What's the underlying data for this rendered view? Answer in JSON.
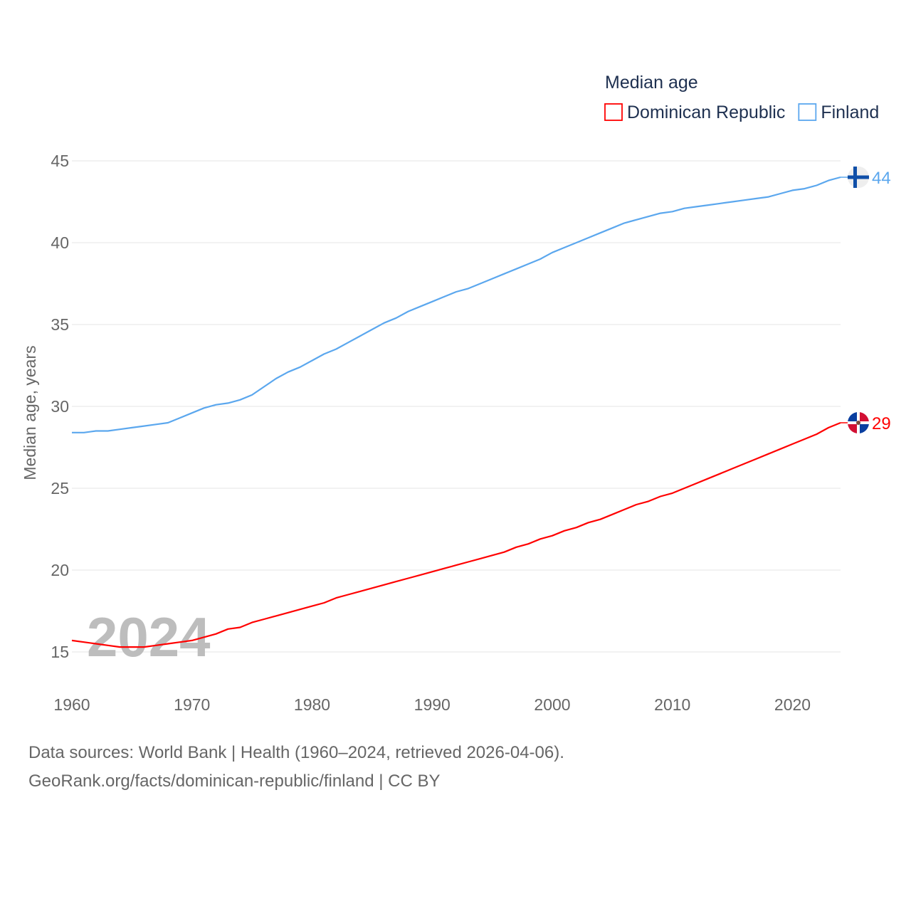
{
  "chart_data": {
    "type": "line",
    "title": "",
    "legend_title": "Median age",
    "legend_placement": "top-right",
    "xlabel": "",
    "ylabel": "Median age, years",
    "xlim": [
      1960,
      2024
    ],
    "ylim": [
      15,
      45
    ],
    "x_ticks": [
      "1960",
      "1970",
      "1980",
      "1990",
      "2000",
      "2010",
      "2020"
    ],
    "y_ticks": [
      "15",
      "20",
      "25",
      "30",
      "35",
      "40",
      "45"
    ],
    "grid": true,
    "year_watermark": "2024",
    "x": [
      1960,
      1961,
      1962,
      1963,
      1964,
      1965,
      1966,
      1967,
      1968,
      1969,
      1970,
      1971,
      1972,
      1973,
      1974,
      1975,
      1976,
      1977,
      1978,
      1979,
      1980,
      1981,
      1982,
      1983,
      1984,
      1985,
      1986,
      1987,
      1988,
      1989,
      1990,
      1991,
      1992,
      1993,
      1994,
      1995,
      1996,
      1997,
      1998,
      1999,
      2000,
      2001,
      2002,
      2003,
      2004,
      2005,
      2006,
      2007,
      2008,
      2009,
      2010,
      2011,
      2012,
      2013,
      2014,
      2015,
      2016,
      2017,
      2018,
      2019,
      2020,
      2021,
      2022,
      2023,
      2024
    ],
    "series": [
      {
        "name": "Dominican Republic",
        "color": "#ff0000",
        "end_label": "29",
        "values": [
          15.7,
          15.6,
          15.5,
          15.4,
          15.3,
          15.3,
          15.3,
          15.4,
          15.5,
          15.6,
          15.7,
          15.9,
          16.1,
          16.4,
          16.5,
          16.8,
          17.0,
          17.2,
          17.4,
          17.6,
          17.8,
          18.0,
          18.3,
          18.5,
          18.7,
          18.9,
          19.1,
          19.3,
          19.5,
          19.7,
          19.9,
          20.1,
          20.3,
          20.5,
          20.7,
          20.9,
          21.1,
          21.4,
          21.6,
          21.9,
          22.1,
          22.4,
          22.6,
          22.9,
          23.1,
          23.4,
          23.7,
          24.0,
          24.2,
          24.5,
          24.7,
          25.0,
          25.3,
          25.6,
          25.9,
          26.2,
          26.5,
          26.8,
          27.1,
          27.4,
          27.7,
          28.0,
          28.3,
          28.7,
          29.0
        ]
      },
      {
        "name": "Finland",
        "color": "#5ba7ee",
        "end_label": "44",
        "values": [
          28.4,
          28.4,
          28.5,
          28.5,
          28.6,
          28.7,
          28.8,
          28.9,
          29.0,
          29.3,
          29.6,
          29.9,
          30.1,
          30.2,
          30.4,
          30.7,
          31.2,
          31.7,
          32.1,
          32.4,
          32.8,
          33.2,
          33.5,
          33.9,
          34.3,
          34.7,
          35.1,
          35.4,
          35.8,
          36.1,
          36.4,
          36.7,
          37.0,
          37.2,
          37.5,
          37.8,
          38.1,
          38.4,
          38.7,
          39.0,
          39.4,
          39.7,
          40.0,
          40.3,
          40.6,
          40.9,
          41.2,
          41.4,
          41.6,
          41.8,
          41.9,
          42.1,
          42.2,
          42.3,
          42.4,
          42.5,
          42.6,
          42.7,
          42.8,
          43.0,
          43.2,
          43.3,
          43.5,
          43.8,
          44.0
        ]
      }
    ]
  },
  "footer": {
    "line1": "Data sources: World Bank | Health (1960–2024, retrieved 2026-04-06).",
    "line2": "GeoRank.org/facts/dominican-republic/finland | CC BY"
  }
}
